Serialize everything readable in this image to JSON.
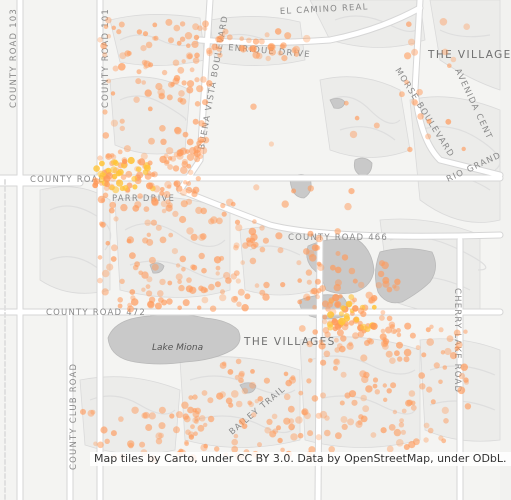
{
  "map": {
    "attribution": "Map tiles by Carto, under CC BY 3.0. Data by OpenStreetMap, under ODbL.",
    "colors": {
      "background": "#f2f2f0",
      "land": "#f6f6f4",
      "road": "#ffffff",
      "road_casing": "#dcdcdc",
      "water": "#c8c8c8",
      "water_edge": "#b8b8b8",
      "subdivision_lines": "#d9d9d9",
      "marker_fill": "#ff9a5a",
      "marker_dense": "#ffc43a",
      "label_text": "#8a8a8a"
    },
    "labels": {
      "el_camino_real": "EL CAMINO REAL",
      "enrique_drive": "ENRIQUE DRIVE",
      "buena_vista_boulevard": "BUENA VISTA BOULEVARD",
      "county_road_103": "COUNTY ROAD 103",
      "county_road_101": "COUNTY ROAD 101",
      "county_road_western": "COUNTY ROAD",
      "parr_drive": "PARR DRIVE",
      "county_road_466": "COUNTY ROAD 466",
      "county_road_472": "COUNTY ROAD 472",
      "the_villages_north": "THE VILLAGE",
      "the_villages_central": "THE VILLAGES",
      "morse_boulevard": "MORSE BOULEVARD",
      "avenida_central": "AVENIDA CENT",
      "rio_grande": "RIO GRAND",
      "cherry_lake_road": "CHERRY LAKE ROAD",
      "county_club_road": "COUNTY CLUB ROAD",
      "bailey_trail": "BAILEY TRAIL",
      "lake_miona": "Lake Miona"
    },
    "icons": {
      "point_marker": "circle"
    },
    "layers": {
      "points": "orange translucent circles",
      "hotspots": "yellow dense clusters"
    }
  }
}
